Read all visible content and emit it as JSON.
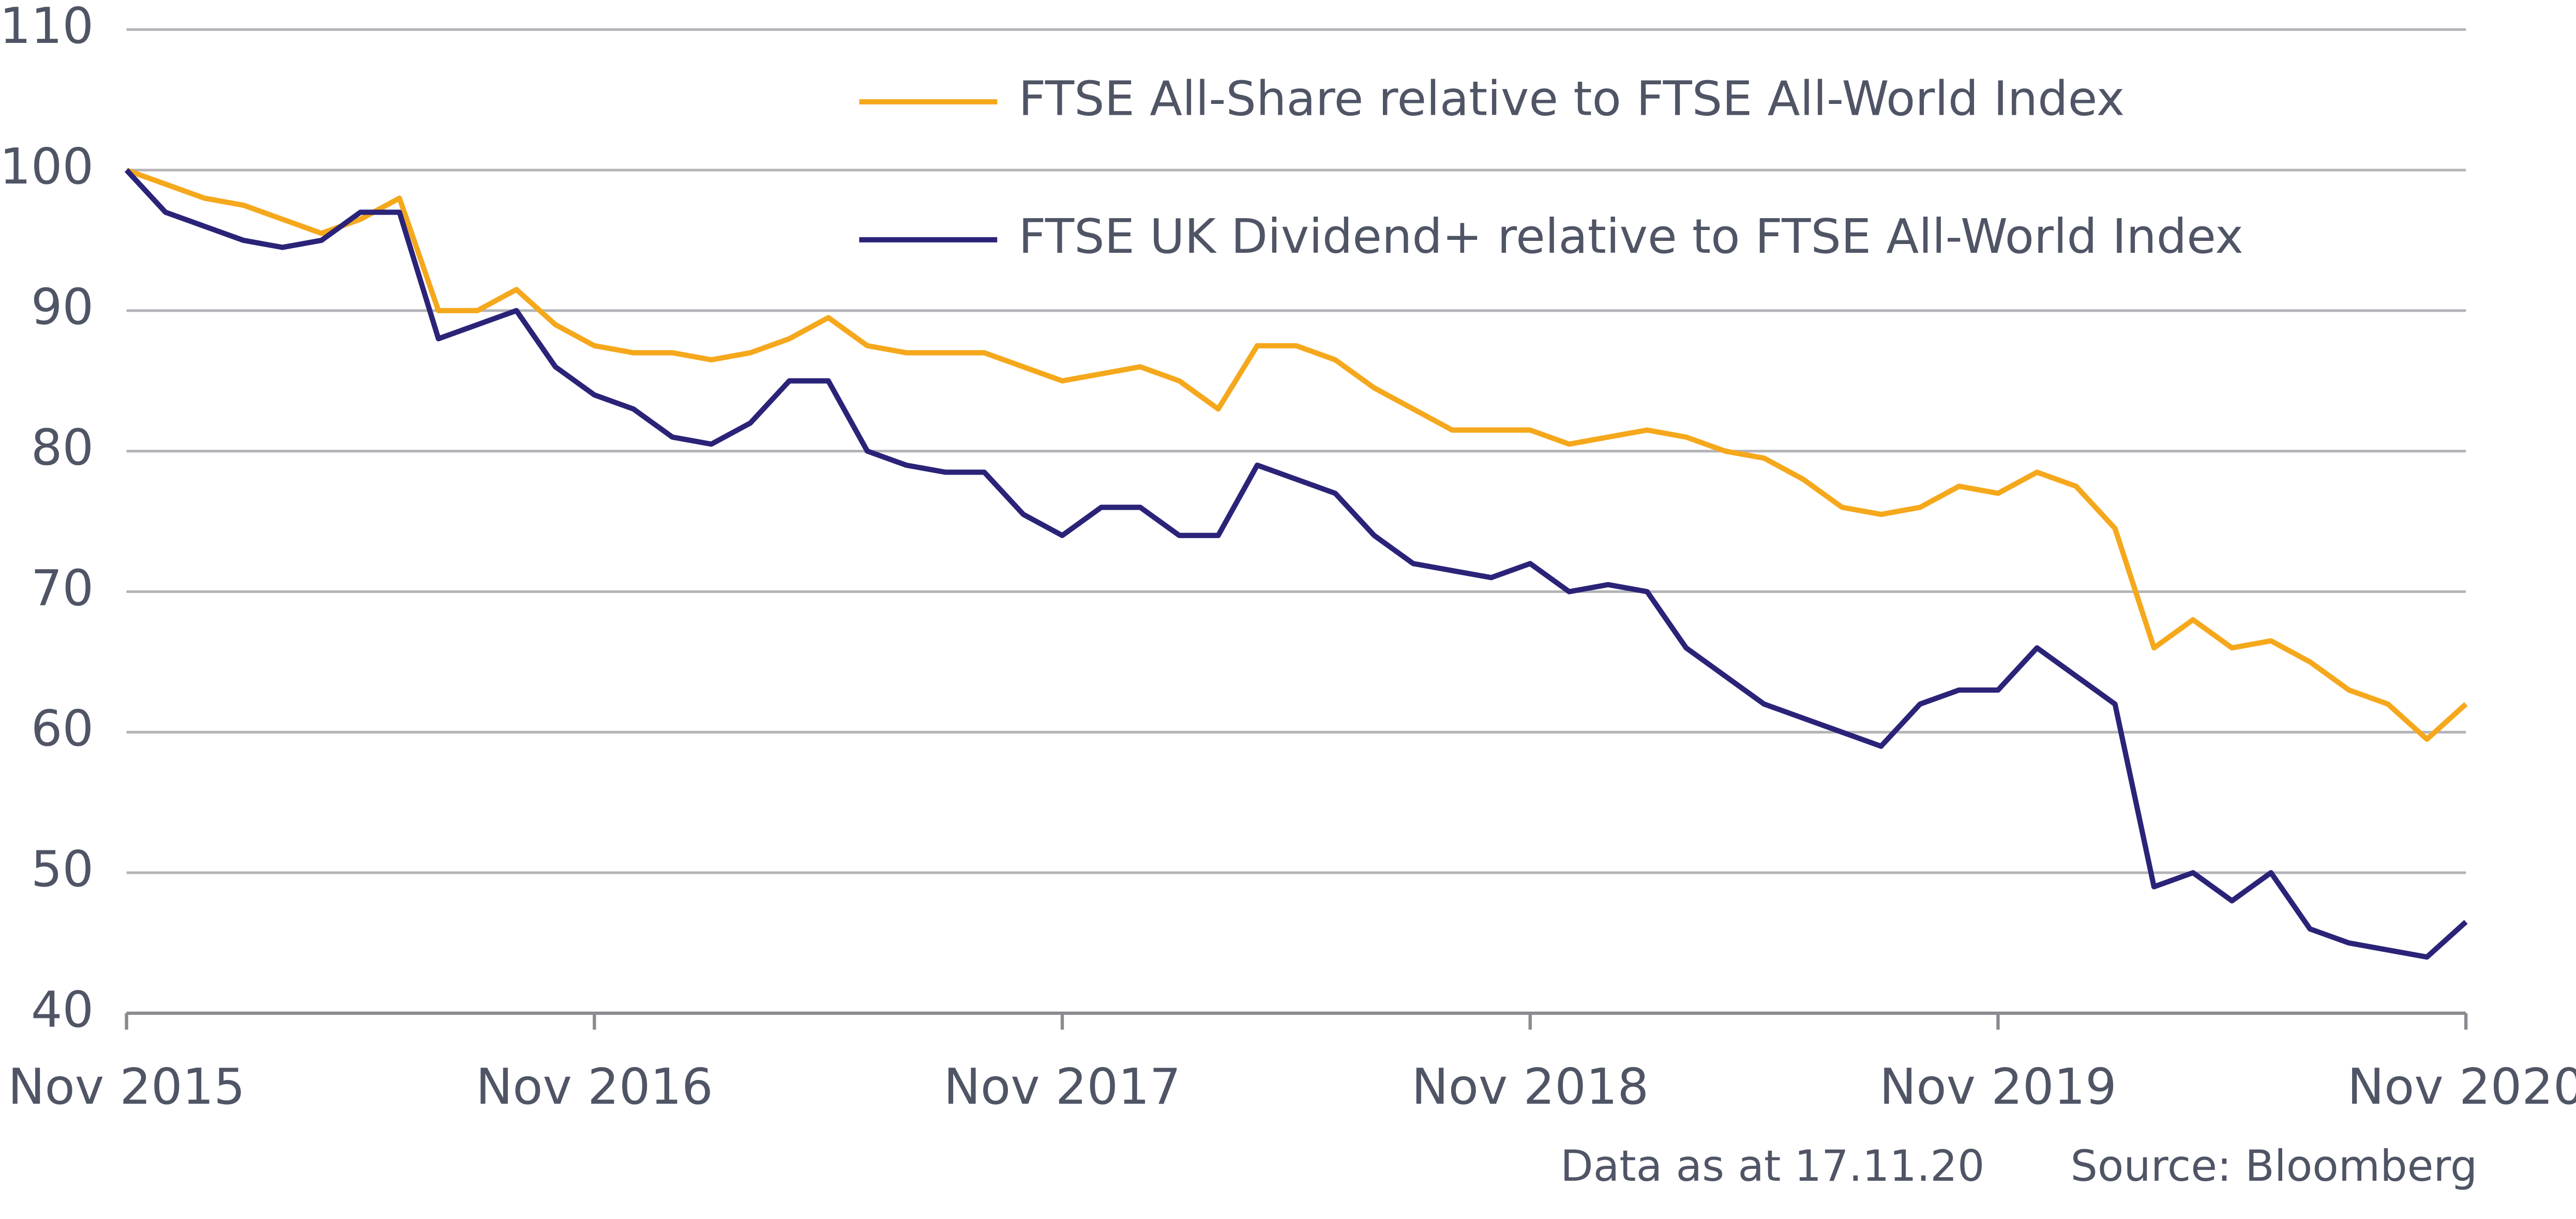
{
  "chart_data": {
    "type": "line",
    "x": [
      "2015-11",
      "2015-12",
      "2016-01",
      "2016-02",
      "2016-03",
      "2016-04",
      "2016-05",
      "2016-06",
      "2016-07",
      "2016-08",
      "2016-09",
      "2016-10",
      "2016-11",
      "2016-12",
      "2017-01",
      "2017-02",
      "2017-03",
      "2017-04",
      "2017-05",
      "2017-06",
      "2017-07",
      "2017-08",
      "2017-09",
      "2017-10",
      "2017-11",
      "2017-12",
      "2018-01",
      "2018-02",
      "2018-03",
      "2018-04",
      "2018-05",
      "2018-06",
      "2018-07",
      "2018-08",
      "2018-09",
      "2018-10",
      "2018-11",
      "2018-12",
      "2019-01",
      "2019-02",
      "2019-03",
      "2019-04",
      "2019-05",
      "2019-06",
      "2019-07",
      "2019-08",
      "2019-09",
      "2019-10",
      "2019-11",
      "2019-12",
      "2020-01",
      "2020-02",
      "2020-03",
      "2020-04",
      "2020-05",
      "2020-06",
      "2020-07",
      "2020-08",
      "2020-09",
      "2020-10",
      "2020-11"
    ],
    "series": [
      {
        "name": "FTSE All-Share relative to FTSE All-World Index",
        "color": "#f5a81c",
        "values": [
          100,
          99,
          98,
          97.5,
          96.5,
          95.5,
          96.5,
          98,
          90,
          90,
          91.5,
          89,
          87.5,
          87,
          87,
          86.5,
          87,
          88,
          89.5,
          87.5,
          87,
          87,
          87,
          86,
          85,
          85.5,
          86,
          85,
          83,
          87.5,
          87.5,
          86.5,
          84.5,
          83,
          81.5,
          81.5,
          81.5,
          80.5,
          81,
          81.5,
          81,
          80,
          79.5,
          78,
          76,
          75.5,
          76,
          77.5,
          77,
          78.5,
          77.5,
          74.5,
          66,
          68,
          66,
          66.5,
          65,
          63,
          62,
          59.5,
          62
        ]
      },
      {
        "name": "FTSE UK Dividend+ relative to FTSE All-World Index",
        "color": "#2a2378",
        "values": [
          100,
          97,
          96,
          95,
          94.5,
          95,
          97,
          97,
          88,
          89,
          90,
          86,
          84,
          83,
          81,
          80.5,
          82,
          85,
          85,
          80,
          79,
          78.5,
          78.5,
          75.5,
          74,
          76,
          76,
          74,
          74,
          79,
          78,
          77,
          74,
          72,
          71.5,
          71,
          72,
          70,
          70.5,
          70,
          66,
          64,
          62,
          61,
          60,
          59,
          62,
          63,
          63,
          66,
          64,
          62,
          49,
          50,
          48,
          50,
          46,
          45,
          44.5,
          44,
          46.5
        ]
      }
    ],
    "ylim": [
      40,
      110
    ],
    "yticks": [
      40,
      50,
      60,
      70,
      80,
      90,
      100,
      110
    ],
    "xlim": [
      "2015-11",
      "2020-11"
    ],
    "xticks": [
      {
        "value": "2015-11",
        "label": "Nov 2015"
      },
      {
        "value": "2016-11",
        "label": "Nov 2016"
      },
      {
        "value": "2017-11",
        "label": "Nov 2017"
      },
      {
        "value": "2018-11",
        "label": "Nov 2018"
      },
      {
        "value": "2019-11",
        "label": "Nov 2019"
      },
      {
        "value": "2020-11",
        "label": "Nov 2020"
      }
    ],
    "grid": true,
    "legend": "upper right",
    "annotations": [
      "Data as at 17.11.20",
      "Source: Bloomberg"
    ]
  }
}
